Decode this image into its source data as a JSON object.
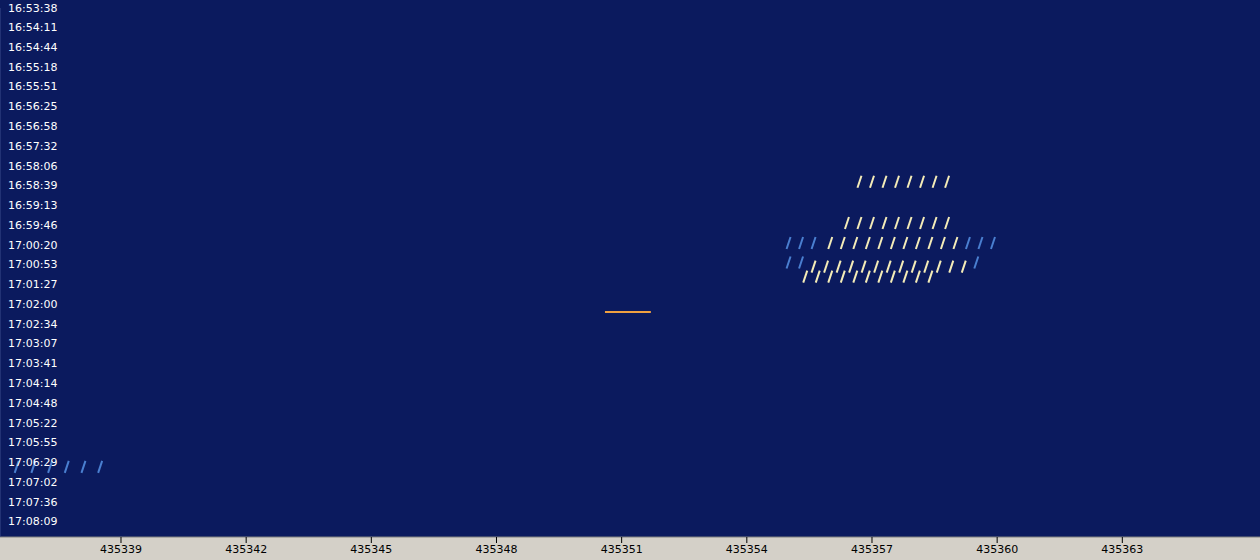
{
  "chart_data": {
    "type": "scatter",
    "grid": false,
    "xlim": [
      435336.1,
      435366.3
    ],
    "xticks": [
      435339,
      435342,
      435345,
      435348,
      435351,
      435354,
      435357,
      435360,
      435363
    ],
    "ylim": [
      60818,
      61716
    ],
    "yticks": [
      {
        "value": 60818,
        "label": "16:53:38"
      },
      {
        "value": 60851,
        "label": "16:54:11"
      },
      {
        "value": 60884,
        "label": "16:54:44"
      },
      {
        "value": 60918,
        "label": "16:55:18"
      },
      {
        "value": 60951,
        "label": "16:55:51"
      },
      {
        "value": 60985,
        "label": "16:56:25"
      },
      {
        "value": 61018,
        "label": "16:56:58"
      },
      {
        "value": 61052,
        "label": "16:57:32"
      },
      {
        "value": 61086,
        "label": "16:58:06"
      },
      {
        "value": 61119,
        "label": "16:58:39"
      },
      {
        "value": 61153,
        "label": "16:59:13"
      },
      {
        "value": 61186,
        "label": "16:59:46"
      },
      {
        "value": 61220,
        "label": "17:00:20"
      },
      {
        "value": 61253,
        "label": "17:00:53"
      },
      {
        "value": 61287,
        "label": "17:01:27"
      },
      {
        "value": 61320,
        "label": "17:02:00"
      },
      {
        "value": 61354,
        "label": "17:02:34"
      },
      {
        "value": 61387,
        "label": "17:03:07"
      },
      {
        "value": 61421,
        "label": "17:03:41"
      },
      {
        "value": 61454,
        "label": "17:04:14"
      },
      {
        "value": 61488,
        "label": "17:04:48"
      },
      {
        "value": 61522,
        "label": "17:05:22"
      },
      {
        "value": 61555,
        "label": "17:05:55"
      },
      {
        "value": 61589,
        "label": "17:06:29"
      },
      {
        "value": 61622,
        "label": "17:07:02"
      },
      {
        "value": 61656,
        "label": "17:07:36"
      },
      {
        "value": 61689,
        "label": "17:08:09"
      }
    ],
    "series": [
      {
        "type": "scatter",
        "marker": "dash",
        "color": "#f4ecb8",
        "x": [
          435356.7,
          435357.0,
          435357.3,
          435357.6,
          435357.9,
          435358.2,
          435358.5,
          435358.8,
          435356.4,
          435356.7,
          435357.0,
          435357.3,
          435357.6,
          435357.9,
          435358.2,
          435358.5,
          435358.8,
          435356.0,
          435356.3,
          435356.6,
          435356.9,
          435357.2,
          435357.5,
          435357.8,
          435358.1,
          435358.4,
          435358.7,
          435359.0,
          435355.6,
          435355.9,
          435356.2,
          435356.5,
          435356.8,
          435357.1,
          435357.4,
          435357.7,
          435358.0,
          435358.3,
          435358.6,
          435358.9,
          435359.2,
          435355.4,
          435355.7,
          435356.0,
          435356.3,
          435356.6,
          435356.9,
          435357.2,
          435357.5,
          435357.8,
          435358.1,
          435358.4
        ],
        "y": [
          61113,
          61113,
          61113,
          61113,
          61113,
          61113,
          61113,
          61113,
          61183,
          61183,
          61183,
          61183,
          61183,
          61183,
          61183,
          61183,
          61183,
          61217,
          61217,
          61217,
          61217,
          61217,
          61217,
          61217,
          61217,
          61217,
          61217,
          61217,
          61257,
          61257,
          61257,
          61257,
          61257,
          61257,
          61257,
          61257,
          61257,
          61257,
          61257,
          61257,
          61257,
          61274,
          61274,
          61274,
          61274,
          61274,
          61274,
          61274,
          61274,
          61274,
          61274,
          61274
        ]
      },
      {
        "type": "scatter",
        "marker": "dash",
        "color": "#4a7fd0",
        "x": [
          435355.0,
          435355.3,
          435355.6,
          435359.3,
          435359.6,
          435359.9,
          435355.0,
          435355.3,
          435359.5,
          435336.5,
          435336.9,
          435337.3,
          435337.7,
          435338.1,
          435338.5
        ],
        "y": [
          61217,
          61217,
          61217,
          61217,
          61217,
          61217,
          61250,
          61250,
          61250,
          61597,
          61597,
          61597,
          61597,
          61597,
          61597
        ]
      },
      {
        "type": "line",
        "color": "#f0a040",
        "x": [
          435350.6,
          435351.7
        ],
        "y": [
          61334,
          61334
        ]
      }
    ]
  }
}
